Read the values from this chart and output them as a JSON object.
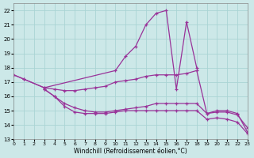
{
  "xlabel": "Windchill (Refroidissement éolien,°C)",
  "bg_color": "#cce8e8",
  "grid_color": "#aad4d4",
  "line_color": "#993399",
  "xlim": [
    0,
    23
  ],
  "ylim": [
    13,
    22.5
  ],
  "xticks": [
    0,
    1,
    2,
    3,
    4,
    5,
    6,
    7,
    8,
    9,
    10,
    11,
    12,
    13,
    14,
    15,
    16,
    17,
    18,
    19,
    20,
    21,
    22,
    23
  ],
  "yticks": [
    13,
    14,
    15,
    16,
    17,
    18,
    19,
    20,
    21,
    22
  ],
  "series": [
    {
      "x": [
        0,
        1,
        3,
        10,
        11,
        12,
        13,
        14,
        15,
        16,
        17,
        18
      ],
      "y": [
        17.5,
        17.2,
        16.6,
        17.8,
        18.8,
        19.5,
        21.0,
        21.8,
        22.0,
        16.5,
        21.2,
        18.0
      ]
    },
    {
      "x": [
        0,
        1,
        3,
        4,
        5,
        6,
        7,
        8,
        9,
        10,
        11,
        12,
        13,
        14,
        15,
        16,
        17,
        18,
        19,
        20,
        21,
        22,
        23
      ],
      "y": [
        17.5,
        17.2,
        16.6,
        16.5,
        16.4,
        16.4,
        16.5,
        16.6,
        16.7,
        17.0,
        17.1,
        17.2,
        17.4,
        17.5,
        17.5,
        17.5,
        17.6,
        17.8,
        14.8,
        15.0,
        15.0,
        14.8,
        13.5
      ]
    },
    {
      "x": [
        3,
        4,
        5,
        6,
        7,
        8,
        9,
        10,
        11,
        12,
        13,
        14,
        15,
        16,
        17,
        18,
        19,
        20,
        21,
        22,
        23
      ],
      "y": [
        16.5,
        16.0,
        15.5,
        15.2,
        15.0,
        14.9,
        14.9,
        15.0,
        15.1,
        15.2,
        15.3,
        15.5,
        15.5,
        15.5,
        15.5,
        15.5,
        14.8,
        14.9,
        14.9,
        14.7,
        13.8
      ]
    },
    {
      "x": [
        3,
        4,
        5,
        6,
        7,
        8,
        9,
        10,
        11,
        12,
        13,
        14,
        15,
        16,
        17,
        18,
        19,
        20,
        21,
        22,
        23
      ],
      "y": [
        16.5,
        16.0,
        15.3,
        14.9,
        14.8,
        14.8,
        14.8,
        14.9,
        15.0,
        15.0,
        15.0,
        15.0,
        15.0,
        15.0,
        15.0,
        15.0,
        14.4,
        14.5,
        14.4,
        14.2,
        13.4
      ]
    }
  ]
}
